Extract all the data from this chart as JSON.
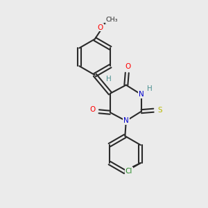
{
  "bg_color": "#ebebeb",
  "bond_color": "#2a2a2a",
  "atom_colors": {
    "O": "#ff0000",
    "N": "#0000cd",
    "S": "#b8b800",
    "Cl": "#228822",
    "H": "#4a9090",
    "C": "#2a2a2a"
  }
}
